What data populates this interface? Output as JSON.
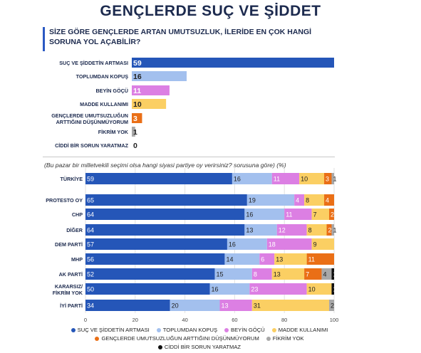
{
  "header": {
    "title": "GENÇLERDE SUÇ VE ŞİDDET",
    "question_line1": "SİZE GÖRE GENÇLERDE ARTAN UMUTSUZLUK, İLERİDE EN ÇOK HANGİ",
    "question_line2": "SORUNA YOL AÇABİLİR?",
    "note": "(Bu pazar bir milletvekili seçimi olsa hangi siyasi partiye oy verirsiniz? sorusuna göre) (%)"
  },
  "colors": {
    "suc": "#2556b8",
    "toplum": "#a3c0ee",
    "beyin": "#dc7fe3",
    "madde": "#fbcf63",
    "umut": "#ea6f16",
    "fikir": "#a8a8a8",
    "ciddi": "#111111"
  },
  "chart_data": [
    {
      "type": "bar",
      "categories": [
        "SUÇ VE ŞİDDETİN ARTMASI",
        "TOPLUMDAN KOPUŞ",
        "BEYİN GÖÇÜ",
        "MADDE KULLANIMI",
        "GENÇLERDE UMUTSUZLUĞUN ARTTIĞINI DÜŞÜNMÜYORUM",
        "FİKRİM YOK",
        "CİDDİ BİR SORUN YARATMAZ"
      ],
      "values": [
        59,
        16,
        11,
        10,
        3,
        1,
        0
      ],
      "colors": [
        "#2556b8",
        "#a3c0ee",
        "#dc7fe3",
        "#fbcf63",
        "#ea6f16",
        "#a8a8a8",
        "#111111"
      ]
    },
    {
      "type": "bar",
      "stacked": true,
      "categories": [
        "TÜRKİYE",
        "PROTESTO OY",
        "CHP",
        "DİĞER",
        "DEM PARTİ",
        "MHP",
        "AK PARTİ",
        "KARARSIZ/ FİKRİM YOK",
        "İYİ PARTİ"
      ],
      "series": [
        {
          "name": "SUÇ VE ŞİDDETİN ARTMASI",
          "color": "#2556b8",
          "values": [
            59,
            65,
            64,
            64,
            57,
            56,
            52,
            50,
            34
          ]
        },
        {
          "name": "TOPLUMDAN KOPUŞ",
          "color": "#a3c0ee",
          "values": [
            16,
            19,
            16,
            13,
            16,
            14,
            15,
            16,
            20
          ]
        },
        {
          "name": "BEYİN GÖÇÜ",
          "color": "#dc7fe3",
          "values": [
            11,
            4,
            11,
            12,
            18,
            6,
            8,
            23,
            13
          ]
        },
        {
          "name": "MADDE KULLANIMI",
          "color": "#fbcf63",
          "values": [
            10,
            8,
            7,
            8,
            9,
            13,
            13,
            10,
            31
          ]
        },
        {
          "name": "GENÇLERDE UMUTSUZLUĞUN ARTTIĞINI DÜŞÜNMÜYORUM",
          "color": "#ea6f16",
          "values": [
            3,
            4,
            2,
            2,
            0,
            11,
            7,
            0,
            0
          ]
        },
        {
          "name": "FİKRİM YOK",
          "color": "#a8a8a8",
          "values": [
            1,
            0,
            0,
            1,
            0,
            0,
            4,
            0,
            2
          ]
        },
        {
          "name": "CİDDİ BİR SORUN YARATMAZ",
          "color": "#111111",
          "values": [
            0,
            0,
            0,
            0,
            0,
            0,
            1,
            1,
            0
          ]
        }
      ],
      "xticks": [
        "0",
        "20",
        "40",
        "60",
        "80",
        "100"
      ],
      "xlim": [
        0,
        100
      ]
    }
  ]
}
